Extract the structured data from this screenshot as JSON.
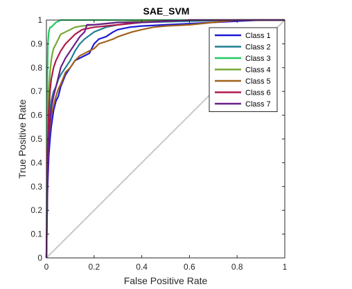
{
  "chart_data": {
    "type": "line",
    "title": "SAE_SVM",
    "xlabel": "False Positive Rate",
    "ylabel": "True Positive Rate",
    "xlim": [
      0,
      1
    ],
    "ylim": [
      0,
      1
    ],
    "xticks": [
      "0",
      "0.2",
      "0.4",
      "0.6",
      "0.8",
      "1"
    ],
    "yticks": [
      "0",
      "0.1",
      "0.2",
      "0.3",
      "0.4",
      "0.5",
      "0.6",
      "0.7",
      "0.8",
      "0.9",
      "1"
    ],
    "grid": false,
    "legend_position": "top-right",
    "reference_line": {
      "x": [
        0,
        1
      ],
      "y": [
        0,
        1
      ],
      "color": "#c8c8c8"
    },
    "series": [
      {
        "name": "Class 1",
        "color": "#1818d8",
        "x": [
          0,
          0.005,
          0.01,
          0.015,
          0.02,
          0.03,
          0.04,
          0.05,
          0.06,
          0.08,
          0.1,
          0.12,
          0.14,
          0.16,
          0.18,
          0.2,
          0.22,
          0.25,
          0.28,
          0.3,
          0.35,
          0.4,
          0.5,
          0.6,
          0.7,
          0.8,
          0.9,
          1
        ],
        "y": [
          0,
          0.3,
          0.43,
          0.5,
          0.55,
          0.62,
          0.66,
          0.68,
          0.72,
          0.77,
          0.8,
          0.83,
          0.84,
          0.85,
          0.86,
          0.9,
          0.92,
          0.93,
          0.95,
          0.96,
          0.97,
          0.975,
          0.98,
          0.985,
          0.99,
          0.995,
          1,
          1
        ]
      },
      {
        "name": "Class 2",
        "color": "#1f7f96",
        "x": [
          0,
          0.005,
          0.01,
          0.015,
          0.02,
          0.03,
          0.04,
          0.05,
          0.06,
          0.08,
          0.1,
          0.12,
          0.14,
          0.16,
          0.2,
          0.25,
          0.3,
          0.4,
          0.6,
          0.8,
          1
        ],
        "y": [
          0,
          0.4,
          0.55,
          0.62,
          0.66,
          0.7,
          0.72,
          0.75,
          0.77,
          0.8,
          0.83,
          0.87,
          0.9,
          0.92,
          0.95,
          0.97,
          0.98,
          0.99,
          0.995,
          1,
          1
        ]
      },
      {
        "name": "Class 3",
        "color": "#22c860",
        "x": [
          0,
          0.002,
          0.004,
          0.006,
          0.01,
          0.015,
          0.02,
          0.03,
          0.04,
          0.06,
          0.1,
          1
        ],
        "y": [
          0,
          0.5,
          0.75,
          0.9,
          0.95,
          0.97,
          0.97,
          0.98,
          0.99,
          1,
          1,
          1
        ]
      },
      {
        "name": "Class 4",
        "color": "#74a832",
        "x": [
          0,
          0.003,
          0.005,
          0.008,
          0.01,
          0.015,
          0.02,
          0.025,
          0.03,
          0.04,
          0.05,
          0.06,
          0.08,
          0.1,
          0.12,
          0.15,
          0.2,
          0.3,
          0.4,
          0.5,
          0.6,
          0.8,
          1
        ],
        "y": [
          0,
          0.35,
          0.5,
          0.62,
          0.7,
          0.78,
          0.83,
          0.86,
          0.88,
          0.9,
          0.92,
          0.94,
          0.95,
          0.96,
          0.97,
          0.975,
          0.98,
          0.99,
          0.995,
          0.995,
          1,
          1,
          1
        ]
      },
      {
        "name": "Class 5",
        "color": "#a0611a",
        "x": [
          0,
          0.005,
          0.01,
          0.015,
          0.02,
          0.03,
          0.04,
          0.05,
          0.06,
          0.08,
          0.1,
          0.12,
          0.14,
          0.16,
          0.18,
          0.2,
          0.22,
          0.25,
          0.28,
          0.3,
          0.33,
          0.36,
          0.4,
          0.45,
          0.5,
          0.6,
          0.7,
          0.8,
          1
        ],
        "y": [
          0,
          0.35,
          0.5,
          0.55,
          0.6,
          0.64,
          0.68,
          0.71,
          0.73,
          0.78,
          0.8,
          0.83,
          0.85,
          0.86,
          0.87,
          0.88,
          0.9,
          0.91,
          0.92,
          0.93,
          0.94,
          0.95,
          0.96,
          0.97,
          0.975,
          0.98,
          0.99,
          1,
          1
        ]
      },
      {
        "name": "Class 6",
        "color": "#b01848",
        "x": [
          0,
          0.003,
          0.005,
          0.008,
          0.01,
          0.015,
          0.02,
          0.03,
          0.04,
          0.05,
          0.06,
          0.08,
          0.1,
          0.12,
          0.15,
          0.2,
          0.3,
          0.4,
          0.6,
          0.8,
          1
        ],
        "y": [
          0,
          0.3,
          0.45,
          0.55,
          0.62,
          0.7,
          0.75,
          0.8,
          0.83,
          0.85,
          0.87,
          0.9,
          0.92,
          0.94,
          0.96,
          0.97,
          0.98,
          0.99,
          1,
          1,
          1
        ]
      },
      {
        "name": "Class 7",
        "color": "#6a1e8a",
        "x": [
          0,
          0.005,
          0.01,
          0.015,
          0.02,
          0.03,
          0.04,
          0.05,
          0.06,
          0.08,
          0.1,
          0.12,
          0.14,
          0.16,
          0.17,
          0.2,
          0.3,
          0.4,
          0.6,
          0.8,
          1
        ],
        "y": [
          0,
          0.35,
          0.5,
          0.58,
          0.63,
          0.68,
          0.72,
          0.76,
          0.8,
          0.84,
          0.87,
          0.9,
          0.93,
          0.95,
          0.98,
          0.98,
          0.99,
          0.99,
          1,
          1,
          1
        ]
      }
    ]
  }
}
